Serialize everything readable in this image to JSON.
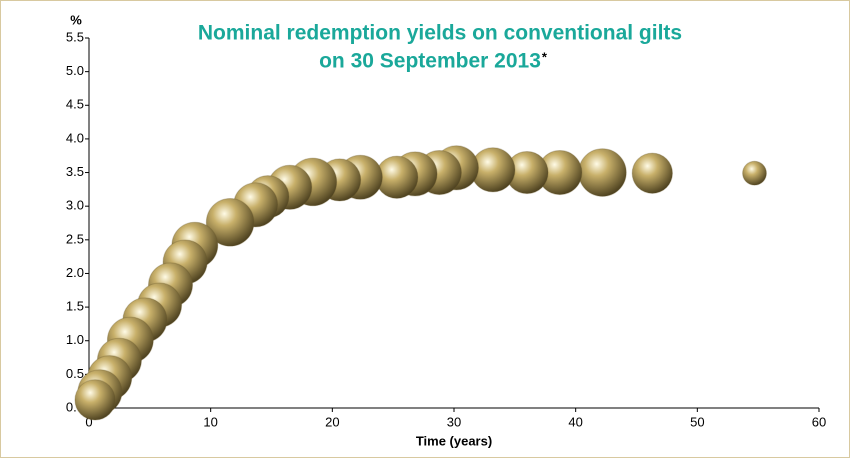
{
  "chart_data": {
    "type": "bubble",
    "title_lines": [
      "Nominal redemption yields on conventional gilts",
      "on 30 September 2013"
    ],
    "title_mark": "*",
    "y_axis_label": "%",
    "x_axis_label": "Time (years)",
    "color": "#c8b06a",
    "x": [
      54.7,
      46.3,
      42.2,
      38.7,
      36.0,
      33.2,
      30.2,
      28.8,
      26.8,
      25.3,
      22.3,
      20.6,
      18.4,
      16.5,
      14.7,
      13.7,
      11.6,
      8.7,
      7.9,
      6.7,
      5.8,
      4.6,
      3.4,
      2.5,
      1.7,
      0.9,
      0.5
    ],
    "values": [
      3.49,
      3.49,
      3.5,
      3.5,
      3.5,
      3.54,
      3.57,
      3.5,
      3.48,
      3.43,
      3.43,
      3.39,
      3.36,
      3.28,
      3.14,
      3.02,
      2.76,
      2.42,
      2.17,
      1.83,
      1.53,
      1.31,
      1.01,
      0.71,
      0.45,
      0.24,
      0.12
    ],
    "sizes": [
      7,
      20,
      28,
      24,
      22,
      24,
      24,
      24,
      24,
      22,
      24,
      22,
      28,
      24,
      22,
      24,
      28,
      26,
      24,
      24,
      24,
      24,
      26,
      24,
      24,
      24,
      20
    ],
    "xlim": [
      0,
      60
    ],
    "xticks": [
      0,
      10,
      20,
      30,
      40,
      50,
      60
    ],
    "ylim": [
      0,
      5.5
    ],
    "yticks": [
      {
        "value": 0,
        "label": "0.0"
      },
      {
        "value": 0.5,
        "label": "0.5"
      },
      {
        "value": 1,
        "label": "1.0"
      },
      {
        "value": 1.5,
        "label": "1.5"
      },
      {
        "value": 2,
        "label": "2.0"
      },
      {
        "value": 2.5,
        "label": "2.5"
      },
      {
        "value": 3,
        "label": "3.0"
      },
      {
        "value": 3.5,
        "label": "3.5"
      },
      {
        "value": 4,
        "label": "4.0"
      },
      {
        "value": 4.5,
        "label": "4.5"
      },
      {
        "value": 5,
        "label": "5.0"
      },
      {
        "value": 5.5,
        "label": "5.5"
      }
    ]
  }
}
